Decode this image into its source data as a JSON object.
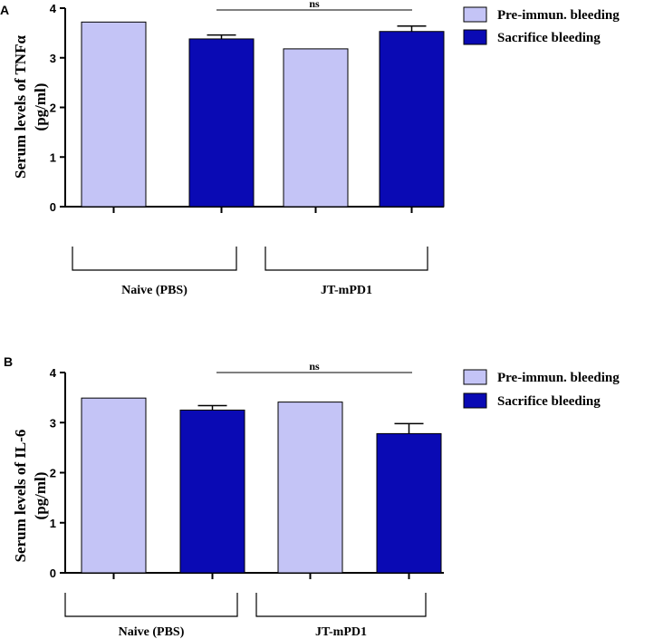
{
  "colors": {
    "pre": "#c4c4f6",
    "sacrifice": "#0a0ab4",
    "axis": "#000000"
  },
  "chart_data": [
    {
      "type": "bar",
      "panel": "A",
      "ylabel": [
        "Serum levels of TNFα",
        "(pg/ml)"
      ],
      "ylim": [
        0,
        4
      ],
      "yticks": [
        "0",
        "1",
        "2",
        "3",
        "4"
      ],
      "groups": [
        "Naive (PBS)",
        "JT-mPD1"
      ],
      "series": [
        {
          "name": "Pre-immun. bleeding",
          "values": [
            3.72,
            3.18
          ],
          "errors": [
            null,
            null
          ]
        },
        {
          "name": "Sacrifice bleeding",
          "values": [
            3.38,
            3.53
          ],
          "errors": [
            0.08,
            0.11
          ]
        }
      ],
      "annotation": "ns"
    },
    {
      "type": "bar",
      "panel": "B",
      "ylabel": [
        "Serum levels of  IL-6",
        "(pg/ml)"
      ],
      "ylim": [
        0,
        4
      ],
      "yticks": [
        "0",
        "1",
        "2",
        "3",
        "4"
      ],
      "groups": [
        "Naive (PBS)",
        "JT-mPD1"
      ],
      "series": [
        {
          "name": "Pre-immun. bleeding",
          "values": [
            3.49,
            3.41
          ],
          "errors": [
            null,
            null
          ]
        },
        {
          "name": "Sacrifice bleeding",
          "values": [
            3.25,
            2.78
          ],
          "errors": [
            0.09,
            0.2
          ]
        }
      ],
      "annotation": "ns"
    }
  ]
}
